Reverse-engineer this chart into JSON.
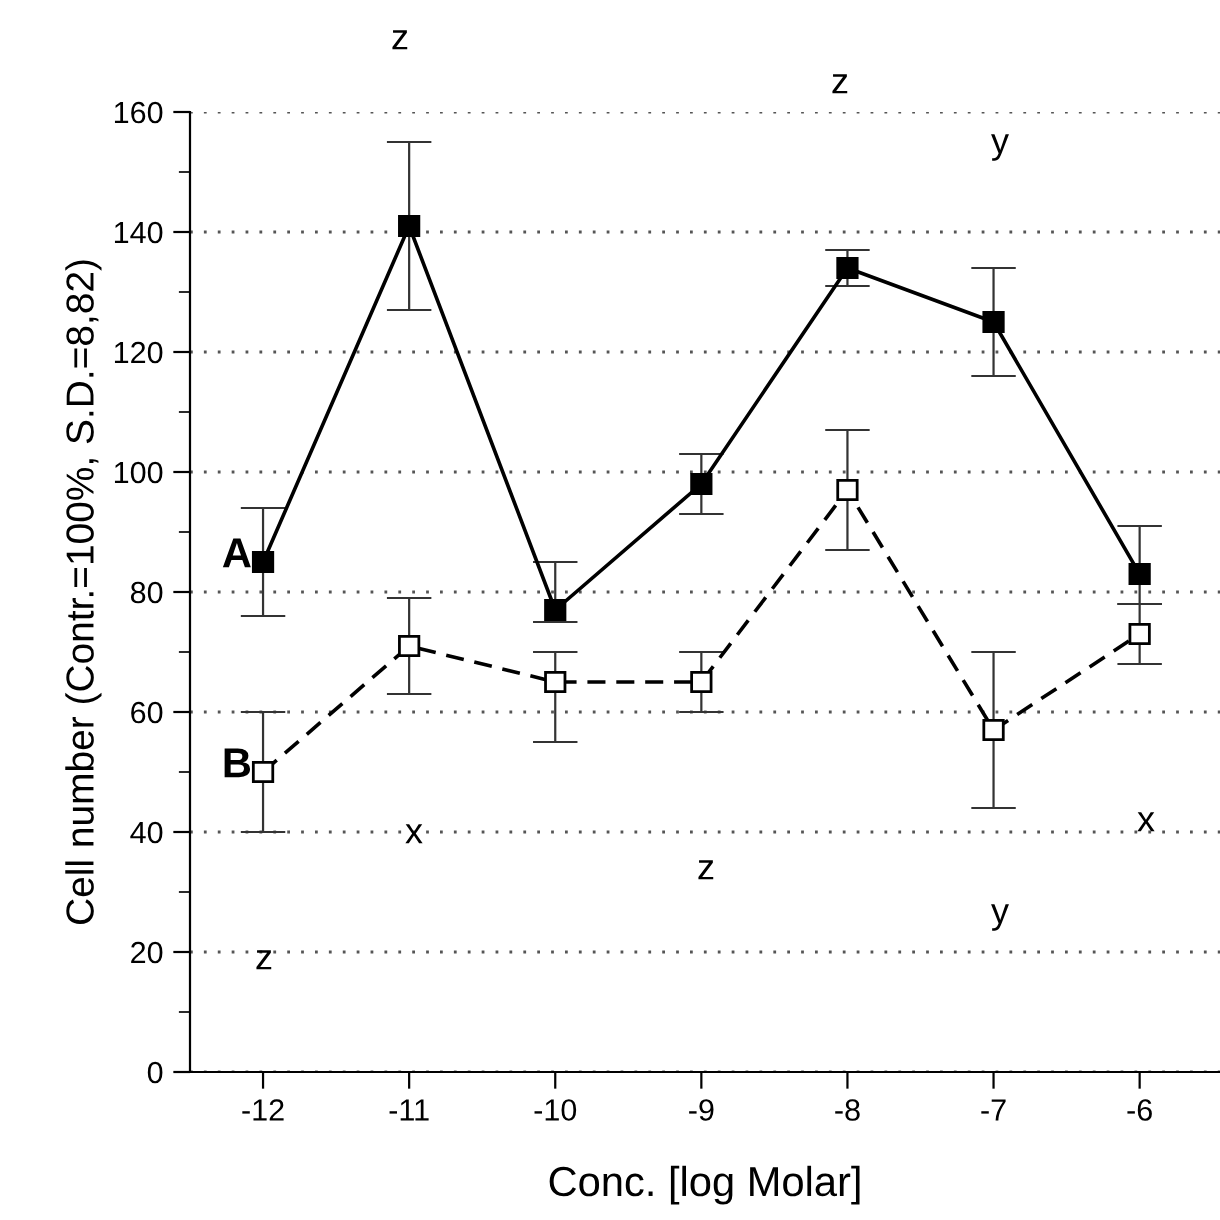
{
  "chart_data": {
    "type": "line",
    "xlabel": "Conc. [log Molar]",
    "ylabel": "Cell number (Contr.=100%, S.D.=8,82)",
    "x": [
      -12,
      -11,
      -10,
      -9,
      -8,
      -7,
      -6
    ],
    "xlim": [
      -12.5,
      -5.45
    ],
    "xticks": [
      -12,
      -11,
      -10,
      -9,
      -8,
      -7,
      -6
    ],
    "ylim": [
      0,
      160
    ],
    "yticks": [
      0,
      {
        "value": 10,
        "label": null
      },
      20,
      {
        "value": 30,
        "label": null
      },
      40,
      {
        "value": 50,
        "label": null
      },
      60,
      {
        "value": 70,
        "label": null
      },
      80,
      {
        "value": 90,
        "label": null
      },
      100,
      {
        "value": 110,
        "label": null
      },
      120,
      {
        "value": 130,
        "label": null
      },
      140,
      {
        "value": 150,
        "label": null
      },
      160
    ],
    "grid": "y",
    "marker": "square",
    "series": [
      {
        "name": "A",
        "color": "#000000",
        "line_style": "solid",
        "values": [
          85,
          141,
          77,
          98,
          134,
          125,
          83
        ],
        "errors": [
          [
            76,
            94
          ],
          [
            127,
            155
          ],
          [
            75,
            85
          ],
          [
            93,
            103
          ],
          [
            131,
            137
          ],
          [
            116,
            134
          ],
          [
            78,
            91
          ]
        ]
      },
      {
        "name": "B",
        "color": "#000000",
        "line_style": "dashed",
        "values": [
          50,
          71,
          65,
          65,
          97,
          57,
          73
        ],
        "errors": [
          [
            40,
            60
          ],
          [
            63,
            79
          ],
          [
            55,
            70
          ],
          [
            60,
            70
          ],
          [
            87,
            107
          ],
          [
            44,
            70
          ],
          [
            68,
            78
          ]
        ]
      }
    ],
    "annotations": [
      "z",
      "z",
      "y",
      "x",
      "z",
      "y",
      "x",
      "z"
    ]
  }
}
